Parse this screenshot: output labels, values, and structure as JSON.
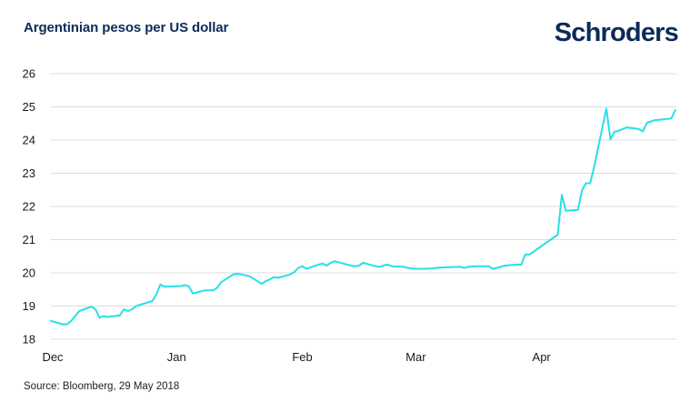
{
  "header": {
    "title": "Argentinian pesos per US dollar",
    "logo_text": "Schroders"
  },
  "footer": {
    "source": "Source: Bloomberg, 29 May 2018"
  },
  "colors": {
    "line": "#27e0e8",
    "grid": "#dcdcdc",
    "brand": "#0b2b57"
  },
  "chart_data": {
    "type": "line",
    "title": "Argentinian pesos per US dollar",
    "xlabel": "",
    "ylabel": "",
    "ylim": [
      18,
      26
    ],
    "yticks": [
      18,
      19,
      20,
      21,
      22,
      23,
      24,
      25,
      26
    ],
    "xticks": [
      {
        "label": "Dec",
        "date": "2017-12-01"
      },
      {
        "label": "Jan",
        "date": "2018-01-01"
      },
      {
        "label": "Feb",
        "date": "2018-02-01"
      },
      {
        "label": "Mar",
        "date": "2018-03-01"
      },
      {
        "label": "Apr",
        "date": "2018-04-01"
      }
    ],
    "grid": "horizontal",
    "legend": "none",
    "series": [
      {
        "points": [
          [
            "2017-12-01",
            18.55
          ],
          [
            "2017-12-04",
            18.45
          ],
          [
            "2017-12-05",
            18.45
          ],
          [
            "2017-12-06",
            18.55
          ],
          [
            "2017-12-08",
            18.85
          ],
          [
            "2017-12-11",
            18.98
          ],
          [
            "2017-12-12",
            18.9
          ],
          [
            "2017-12-13",
            18.65
          ],
          [
            "2017-12-14",
            18.7
          ],
          [
            "2017-12-15",
            18.67
          ],
          [
            "2017-12-18",
            18.72
          ],
          [
            "2017-12-19",
            18.9
          ],
          [
            "2017-12-20",
            18.85
          ],
          [
            "2017-12-21",
            18.9
          ],
          [
            "2017-12-22",
            19.0
          ],
          [
            "2017-12-26",
            19.15
          ],
          [
            "2017-12-27",
            19.35
          ],
          [
            "2017-12-28",
            19.65
          ],
          [
            "2017-12-29",
            19.58
          ],
          [
            "2018-01-02",
            19.6
          ],
          [
            "2018-01-03",
            19.63
          ],
          [
            "2018-01-04",
            19.6
          ],
          [
            "2018-01-05",
            19.38
          ],
          [
            "2018-01-08",
            19.47
          ],
          [
            "2018-01-10",
            19.47
          ],
          [
            "2018-01-11",
            19.55
          ],
          [
            "2018-01-12",
            19.72
          ],
          [
            "2018-01-15",
            19.95
          ],
          [
            "2018-01-16",
            19.97
          ],
          [
            "2018-01-17",
            19.95
          ],
          [
            "2018-01-19",
            19.9
          ],
          [
            "2018-01-22",
            19.67
          ],
          [
            "2018-01-23",
            19.75
          ],
          [
            "2018-01-24",
            19.8
          ],
          [
            "2018-01-25",
            19.87
          ],
          [
            "2018-01-26",
            19.85
          ],
          [
            "2018-01-29",
            19.95
          ],
          [
            "2018-01-30",
            20.02
          ],
          [
            "2018-01-31",
            20.15
          ],
          [
            "2018-02-01",
            20.2
          ],
          [
            "2018-02-02",
            20.12
          ],
          [
            "2018-02-05",
            20.25
          ],
          [
            "2018-02-06",
            20.28
          ],
          [
            "2018-02-07",
            20.22
          ],
          [
            "2018-02-08",
            20.3
          ],
          [
            "2018-02-09",
            20.35
          ],
          [
            "2018-02-12",
            20.25
          ],
          [
            "2018-02-13",
            20.22
          ],
          [
            "2018-02-14",
            20.2
          ],
          [
            "2018-02-15",
            20.22
          ],
          [
            "2018-02-16",
            20.3
          ],
          [
            "2018-02-19",
            20.2
          ],
          [
            "2018-02-20",
            20.18
          ],
          [
            "2018-02-21",
            20.22
          ],
          [
            "2018-02-22",
            20.25
          ],
          [
            "2018-02-23",
            20.2
          ],
          [
            "2018-02-26",
            20.18
          ],
          [
            "2018-02-27",
            20.15
          ],
          [
            "2018-02-28",
            20.13
          ],
          [
            "2018-03-02",
            20.12
          ],
          [
            "2018-03-05",
            20.13
          ],
          [
            "2018-03-06",
            20.15
          ],
          [
            "2018-03-09",
            20.17
          ],
          [
            "2018-03-12",
            20.18
          ],
          [
            "2018-03-13",
            20.15
          ],
          [
            "2018-03-14",
            20.18
          ],
          [
            "2018-03-16",
            20.2
          ],
          [
            "2018-03-19",
            20.2
          ],
          [
            "2018-03-20",
            20.12
          ],
          [
            "2018-03-21",
            20.15
          ],
          [
            "2018-03-23",
            20.22
          ],
          [
            "2018-03-26",
            20.25
          ],
          [
            "2018-03-27",
            20.25
          ],
          [
            "2018-03-28",
            20.55
          ],
          [
            "2018-03-29",
            20.55
          ],
          [
            "2018-04-05",
            21.15
          ],
          [
            "2018-04-06",
            22.35
          ],
          [
            "2018-04-07",
            21.87
          ],
          [
            "2018-04-10",
            21.9
          ],
          [
            "2018-04-11",
            22.5
          ],
          [
            "2018-04-12",
            22.7
          ],
          [
            "2018-04-13",
            22.7
          ],
          [
            "2018-04-14",
            23.2
          ],
          [
            "2018-04-17",
            24.95
          ],
          [
            "2018-04-18",
            24.02
          ],
          [
            "2018-04-19",
            24.25
          ],
          [
            "2018-04-20",
            24.28
          ],
          [
            "2018-04-22",
            24.38
          ],
          [
            "2018-04-24",
            24.35
          ],
          [
            "2018-04-25",
            24.33
          ],
          [
            "2018-04-26",
            24.26
          ],
          [
            "2018-04-27",
            24.52
          ],
          [
            "2018-04-29",
            24.6
          ],
          [
            "2018-05-03",
            24.65
          ],
          [
            "2018-05-04",
            24.9
          ]
        ]
      }
    ]
  }
}
